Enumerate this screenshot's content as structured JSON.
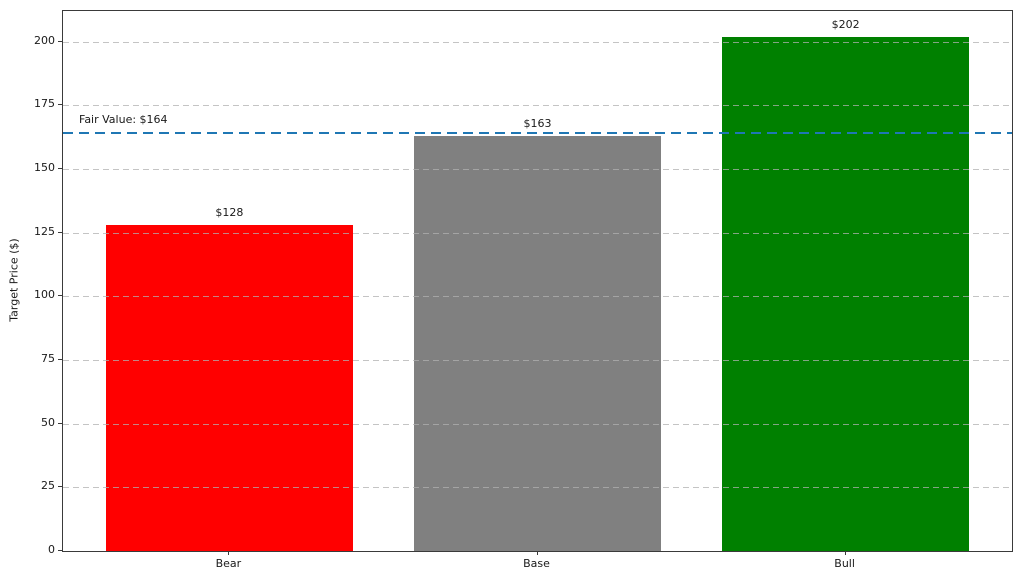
{
  "chart_data": {
    "type": "bar",
    "title": "",
    "xlabel": "",
    "ylabel": "Target Price ($)",
    "categories": [
      "Bear",
      "Base",
      "Bull"
    ],
    "values": [
      128,
      163,
      202
    ],
    "bar_labels": [
      "$128",
      "$163",
      "$202"
    ],
    "bar_colors": [
      "#ff0000",
      "#808080",
      "#008000"
    ],
    "yticks": [
      0,
      25,
      50,
      75,
      100,
      125,
      150,
      175,
      200
    ],
    "ylim": [
      0,
      212.1
    ],
    "grid": {
      "axis": "y",
      "style": "dashed",
      "color": "#b0b0b0",
      "above_bars": true
    },
    "legend": "none",
    "reference_line": {
      "value": 164,
      "label": "Fair Value: $164",
      "color": "#1f77b4",
      "style": "dashed"
    }
  }
}
